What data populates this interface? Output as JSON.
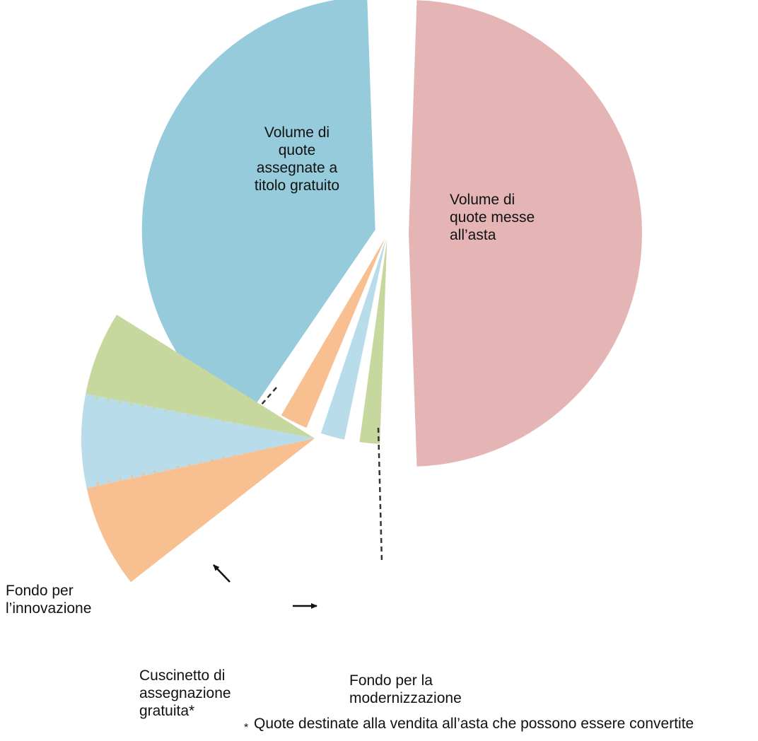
{
  "chart_data": {
    "type": "pie",
    "title": "",
    "colors": {
      "free_allocation": "#95cbdb",
      "auctioned": "#e5b5b6",
      "innovation": "#f8bf91",
      "buffer": "#b8dcea",
      "modernisation": "#c6d89d",
      "buffer_hatch_green": "#c6d89d",
      "buffer_hatch_orange": "#f8bf91",
      "connector": "#333333",
      "arrow": "#111111"
    },
    "slices": [
      {
        "key": "auctioned",
        "label": "Volume di\nquote messe\nall’asta",
        "value": 50,
        "exploded": true
      },
      {
        "key": "free_allocation",
        "label": "Volume di\nquote\nassegnate a\ntitolo gratuito",
        "value": 41,
        "exploded": true
      }
    ],
    "small_slices": [
      {
        "key": "innovation",
        "value": 3.3
      },
      {
        "key": "buffer",
        "value": 3.0
      },
      {
        "key": "modernisation",
        "value": 2.7
      }
    ],
    "breakout": [
      {
        "key": "innovation",
        "label": "Fondo per\nl’innovazione",
        "value": 3.3
      },
      {
        "key": "buffer",
        "label": "Cuscinetto di\nassegnazione\ngratuita*",
        "value": 3.0
      },
      {
        "key": "modernisation",
        "label": "Fondo per la\nmodernizzazione",
        "value": 2.7
      }
    ],
    "footnote": "Quote destinate alla vendita all’asta che possono essere convertite",
    "footnote_marker": "*"
  }
}
